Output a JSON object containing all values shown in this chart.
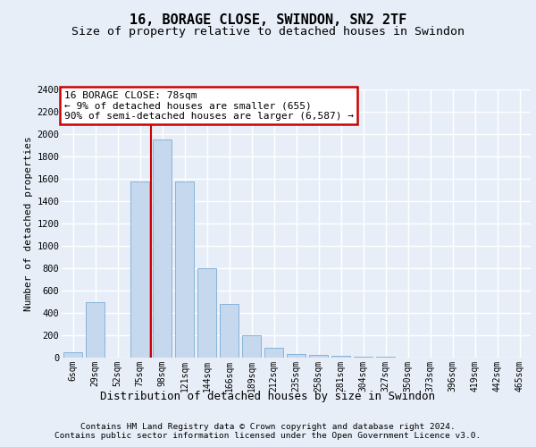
{
  "title": "16, BORAGE CLOSE, SWINDON, SN2 2TF",
  "subtitle": "Size of property relative to detached houses in Swindon",
  "xlabel": "Distribution of detached houses by size in Swindon",
  "ylabel": "Number of detached properties",
  "bar_labels": [
    "6sqm",
    "29sqm",
    "52sqm",
    "75sqm",
    "98sqm",
    "121sqm",
    "144sqm",
    "166sqm",
    "189sqm",
    "212sqm",
    "235sqm",
    "258sqm",
    "281sqm",
    "304sqm",
    "327sqm",
    "350sqm",
    "373sqm",
    "396sqm",
    "419sqm",
    "442sqm",
    "465sqm"
  ],
  "bar_values": [
    50,
    500,
    0,
    1580,
    1950,
    1580,
    800,
    480,
    200,
    85,
    35,
    25,
    20,
    5,
    5,
    0,
    0,
    0,
    0,
    0,
    0
  ],
  "bar_color": "#c5d8ee",
  "bar_edge_color": "#7aadd4",
  "vline_color": "#cc0000",
  "vline_x_idx": 3.5,
  "annotation_text": "16 BORAGE CLOSE: 78sqm\n← 9% of detached houses are smaller (655)\n90% of semi-detached houses are larger (6,587) →",
  "annotation_box_facecolor": "#ffffff",
  "annotation_box_edgecolor": "#cc0000",
  "ylim_max": 2400,
  "yticks": [
    0,
    200,
    400,
    600,
    800,
    1000,
    1200,
    1400,
    1600,
    1800,
    2000,
    2200,
    2400
  ],
  "bg_color": "#e8eef8",
  "grid_color": "#ffffff",
  "footer1": "Contains HM Land Registry data © Crown copyright and database right 2024.",
  "footer2": "Contains public sector information licensed under the Open Government Licence v3.0."
}
